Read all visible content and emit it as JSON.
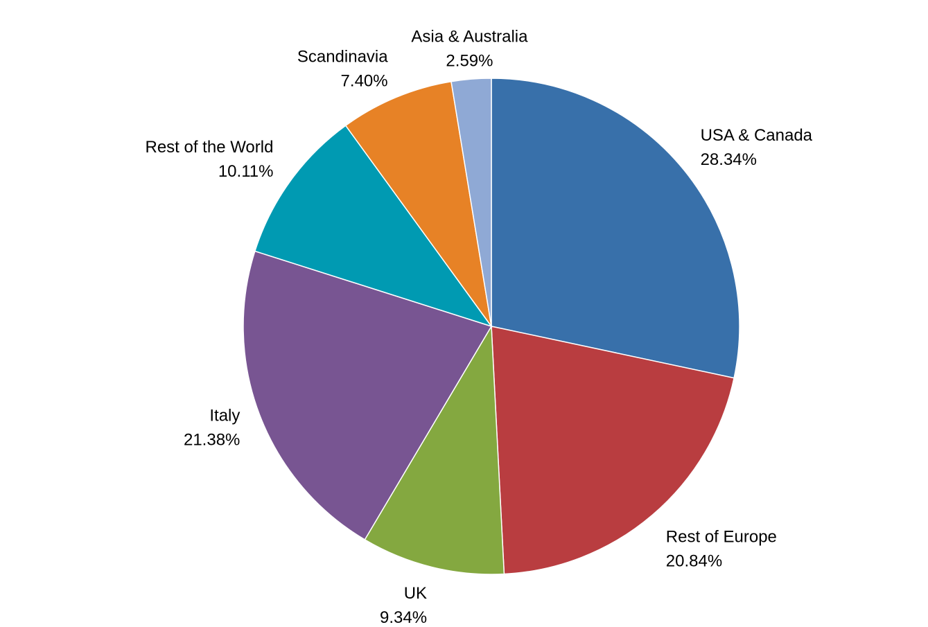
{
  "chart_data": {
    "type": "pie",
    "categories": [
      "USA & Canada",
      "Rest of Europe",
      "UK",
      "Italy",
      "Rest of the World",
      "Scandinavia",
      "Asia & Australia"
    ],
    "values": [
      28.34,
      20.84,
      9.34,
      21.38,
      10.11,
      7.4,
      2.59
    ],
    "value_labels": [
      "28.34%",
      "20.84%",
      "9.34%",
      "21.38%",
      "10.11%",
      "7.40%",
      "2.59%"
    ],
    "colors": [
      "#3870aa",
      "#b93d40",
      "#84a840",
      "#785592",
      "#009ab2",
      "#e78226",
      "#8fa9d5"
    ]
  }
}
